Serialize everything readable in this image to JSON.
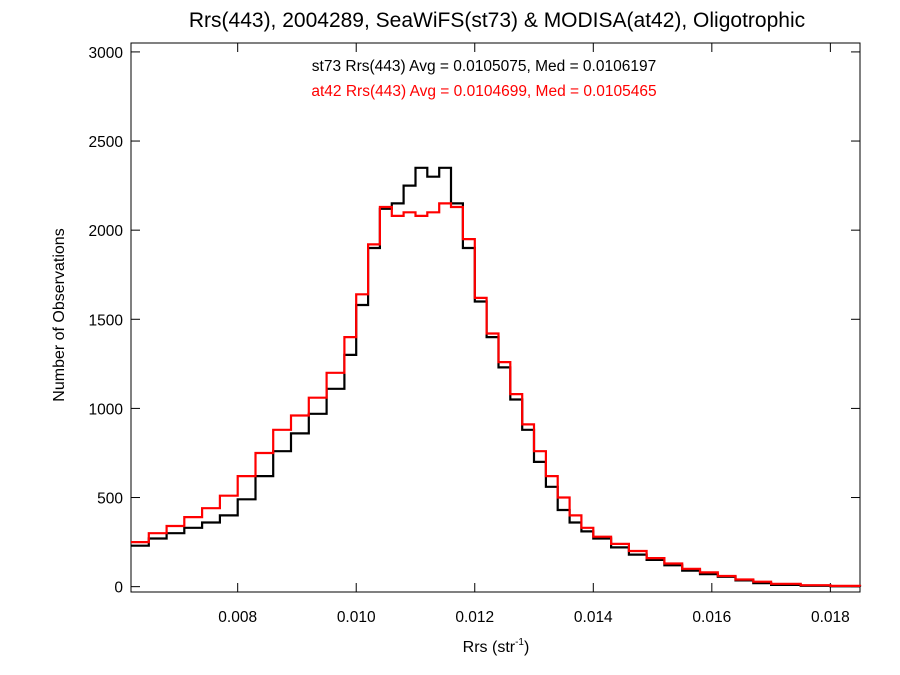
{
  "chart_data": {
    "type": "line",
    "title": "Rrs(443), 2004289, SeaWiFS(st73) & MODISA(at42), Oligotrophic",
    "xlabel": "Rrs (str",
    "xlabel_sup": "-1",
    "xlabel_suffix": ")",
    "ylabel": "Number of Observations",
    "xlim": [
      0.0062,
      0.0185
    ],
    "ylim": [
      -30,
      3050
    ],
    "xticks": [
      0.008,
      0.01,
      0.012,
      0.014,
      0.016,
      0.018
    ],
    "xtick_labels": [
      "0.008",
      "0.010",
      "0.012",
      "0.014",
      "0.016",
      "0.018"
    ],
    "yticks": [
      0,
      500,
      1000,
      1500,
      2000,
      2500,
      3000
    ],
    "ytick_labels": [
      "0",
      "500",
      "1000",
      "1500",
      "2000",
      "2500",
      "3000"
    ],
    "grid": false,
    "annotations": [
      {
        "text": "st73 Rrs(443) Avg = 0.0105075, Med = 0.0106197",
        "color": "#000000"
      },
      {
        "text": "at42 Rrs(443) Avg = 0.0104699, Med = 0.0105465",
        "color": "#ff0000"
      }
    ],
    "series": [
      {
        "color": "#000000",
        "style": "step",
        "x": [
          0.0062,
          0.0065,
          0.0068,
          0.0071,
          0.0074,
          0.0077,
          0.008,
          0.0083,
          0.0086,
          0.0089,
          0.0092,
          0.0095,
          0.0098,
          0.01,
          0.0102,
          0.0104,
          0.0106,
          0.0108,
          0.011,
          0.0112,
          0.0114,
          0.0116,
          0.0118,
          0.012,
          0.0122,
          0.0124,
          0.0126,
          0.0128,
          0.013,
          0.0132,
          0.0134,
          0.0136,
          0.0138,
          0.014,
          0.0143,
          0.0146,
          0.0149,
          0.0152,
          0.0155,
          0.0158,
          0.0161,
          0.0164,
          0.0167,
          0.017,
          0.0175,
          0.018,
          0.0185
        ],
        "y": [
          230,
          270,
          300,
          330,
          360,
          400,
          490,
          620,
          760,
          860,
          970,
          1110,
          1300,
          1580,
          1900,
          2120,
          2150,
          2250,
          2350,
          2300,
          2350,
          2150,
          1900,
          1600,
          1400,
          1230,
          1050,
          880,
          700,
          560,
          430,
          360,
          310,
          270,
          220,
          180,
          150,
          120,
          90,
          70,
          55,
          35,
          20,
          10,
          5,
          2,
          0
        ]
      },
      {
        "color": "#ff0000",
        "style": "step",
        "x": [
          0.0062,
          0.0065,
          0.0068,
          0.0071,
          0.0074,
          0.0077,
          0.008,
          0.0083,
          0.0086,
          0.0089,
          0.0092,
          0.0095,
          0.0098,
          0.01,
          0.0102,
          0.0104,
          0.0106,
          0.0108,
          0.011,
          0.0112,
          0.0114,
          0.0116,
          0.0118,
          0.012,
          0.0122,
          0.0124,
          0.0126,
          0.0128,
          0.013,
          0.0132,
          0.0134,
          0.0136,
          0.0138,
          0.014,
          0.0143,
          0.0146,
          0.0149,
          0.0152,
          0.0155,
          0.0158,
          0.0161,
          0.0164,
          0.0167,
          0.017,
          0.0175,
          0.018,
          0.0185
        ],
        "y": [
          250,
          300,
          340,
          390,
          440,
          510,
          620,
          750,
          880,
          960,
          1060,
          1200,
          1400,
          1640,
          1920,
          2130,
          2080,
          2100,
          2080,
          2100,
          2150,
          2130,
          1950,
          1620,
          1420,
          1260,
          1080,
          910,
          760,
          620,
          500,
          400,
          330,
          280,
          240,
          200,
          160,
          130,
          100,
          80,
          60,
          40,
          28,
          16,
          8,
          4,
          2
        ]
      }
    ]
  }
}
